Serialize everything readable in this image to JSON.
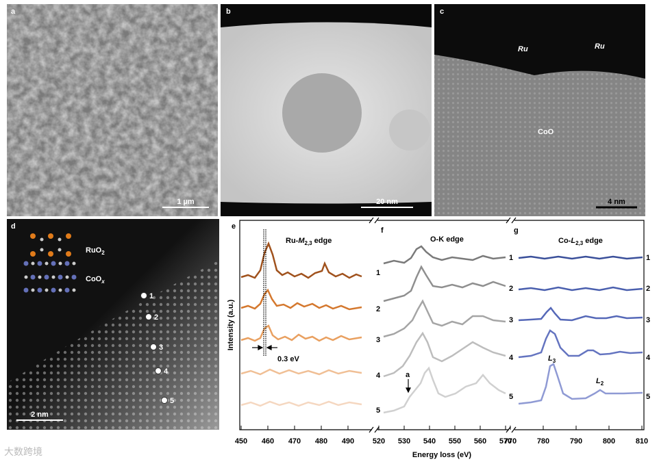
{
  "panels": {
    "a": {
      "label": "a",
      "scale": "1 µm"
    },
    "b": {
      "label": "b",
      "scale": "20 nm"
    },
    "c": {
      "label": "c",
      "scale": "4 nm",
      "ru1": "Ru",
      "ru2": "Ru",
      "coo": "CoO"
    },
    "d": {
      "label": "d",
      "scale": "2 nm",
      "legend1": "RuO",
      "legend1_sub": "2",
      "legend2": "CoO",
      "legend2_sub": "x",
      "points": [
        "1",
        "2",
        "3",
        "4",
        "5"
      ]
    }
  },
  "spectra": {
    "y_label": "Intensity (a.u.)",
    "x_label": "Energy loss (eV)",
    "e": {
      "label": "e",
      "title_pre": "Ru-",
      "title_var": "M",
      "title_sub": "2,3",
      "title_post": " edge",
      "annotation": "0.3 eV",
      "xticks": [
        450,
        460,
        470,
        480,
        490
      ],
      "curve_labels": [
        "1",
        "2",
        "3",
        "4",
        "5"
      ]
    },
    "f": {
      "label": "f",
      "title": "O-K edge",
      "annotation": "a",
      "xticks": [
        520,
        530,
        540,
        550,
        560,
        570
      ],
      "curve_labels": [
        "1",
        "2",
        "3",
        "4",
        "5"
      ]
    },
    "g": {
      "label": "g",
      "title_pre": "Co-",
      "title_var": "L",
      "title_sub": "2,3",
      "title_post": " edge",
      "peak1": "L",
      "peak1_sub": "3",
      "peak2": "L",
      "peak2_sub": "2",
      "xticks": [
        770,
        780,
        790,
        800,
        810
      ],
      "curve_labels": [
        "1",
        "2",
        "3",
        "4",
        "5"
      ]
    }
  },
  "watermark": "大数跨境"
}
